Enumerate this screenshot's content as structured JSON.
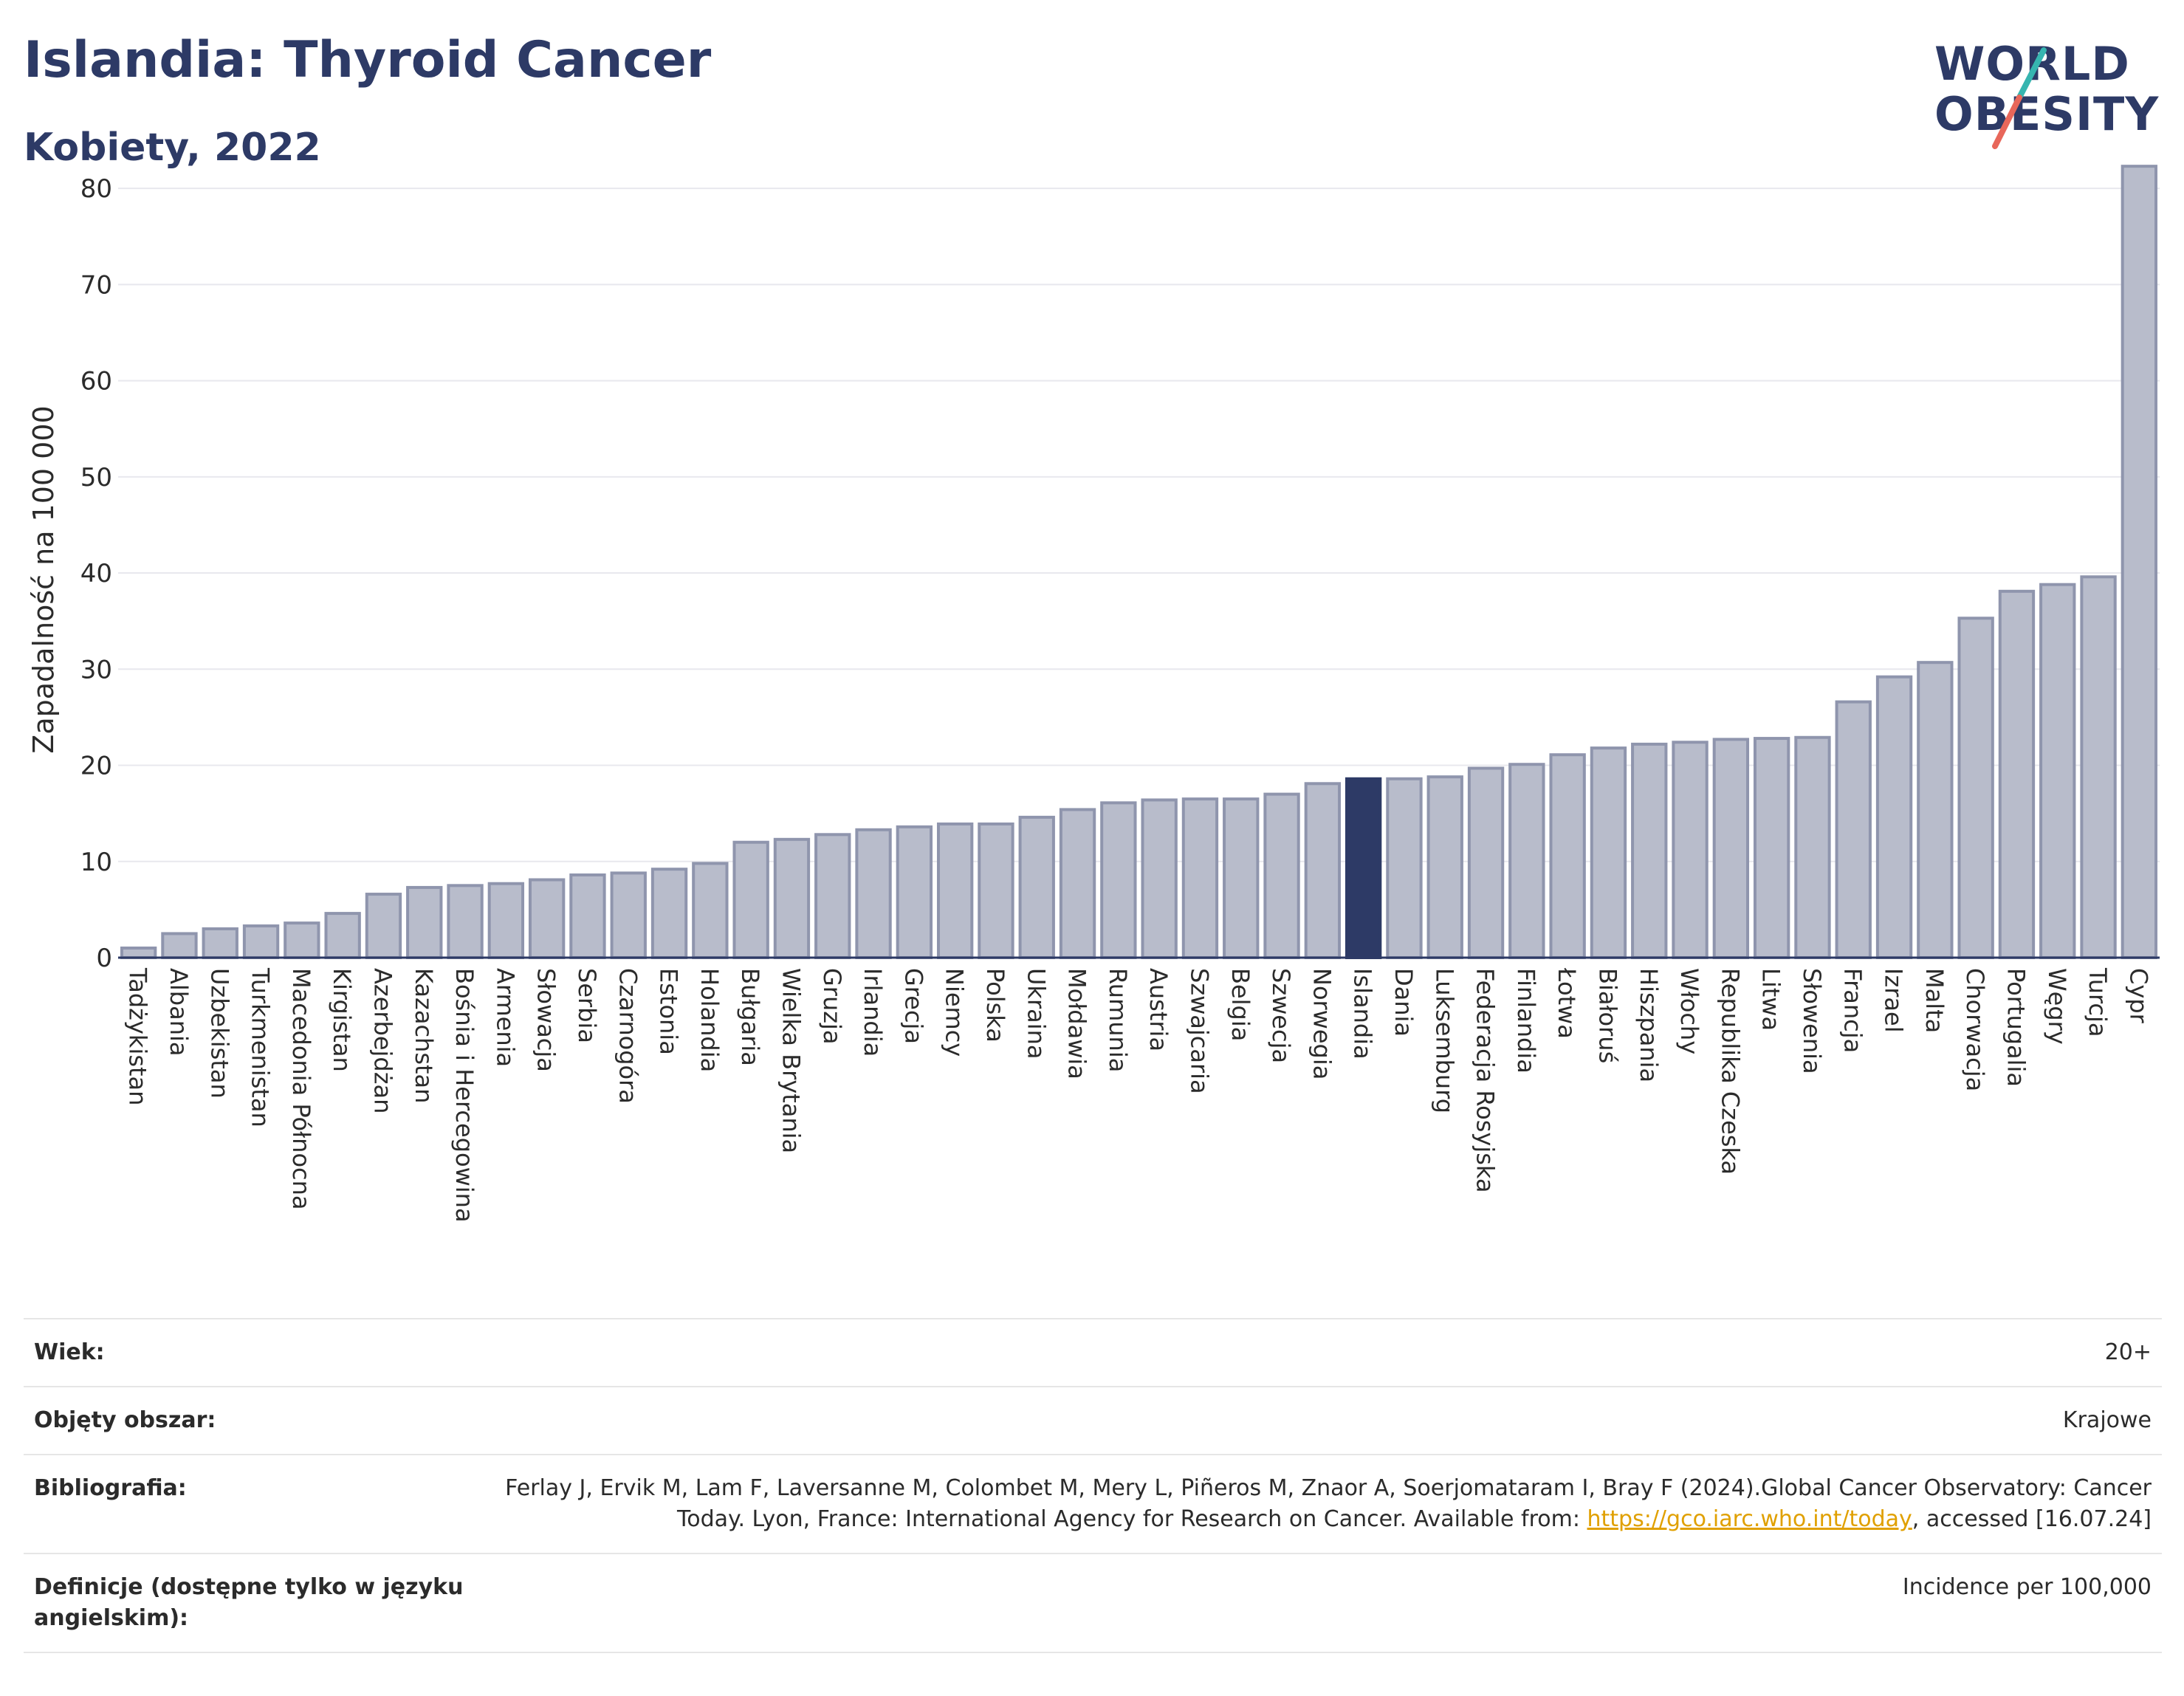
{
  "header": {
    "title": "Islandia: Thyroid Cancer",
    "subtitle": "Kobiety, 2022"
  },
  "logo": {
    "line1": "WORLD",
    "line2": "OBESITY",
    "accent_colors": [
      "#36b5b0",
      "#e8675a"
    ]
  },
  "chart_data": {
    "type": "bar",
    "ylabel": "Zapadalność na 100 000",
    "xlabel": "",
    "ylim": [
      0,
      85
    ],
    "yticks": [
      0,
      10,
      20,
      30,
      40,
      50,
      60,
      70,
      80
    ],
    "grid": true,
    "highlight": "Islandia",
    "colors": {
      "bar": "#b8bccb",
      "bar_edge": "#8f95ad",
      "highlight": "#2d3a66"
    },
    "categories": [
      "Tadżykistan",
      "Albania",
      "Uzbekistan",
      "Turkmenistan",
      "Macedonia Północna",
      "Kirgistan",
      "Azerbejdżan",
      "Kazachstan",
      "Bośnia i Hercegowina",
      "Armenia",
      "Słowacja",
      "Serbia",
      "Czarnogóra",
      "Estonia",
      "Holandia",
      "Bułgaria",
      "Wielka Brytania",
      "Gruzja",
      "Irlandia",
      "Grecja",
      "Niemcy",
      "Polska",
      "Ukraina",
      "Mołdawia",
      "Rumunia",
      "Austria",
      "Szwajcaria",
      "Belgia",
      "Szwecja",
      "Norwegia",
      "Islandia",
      "Dania",
      "Luksemburg",
      "Federacja Rosyjska",
      "Finlandia",
      "Łotwa",
      "Białoruś",
      "Hiszpania",
      "Włochy",
      "Republika Czeska",
      "Litwa",
      "Słowenia",
      "Francja",
      "Izrael",
      "Malta",
      "Chorwacja",
      "Portugalia",
      "Węgry",
      "Turcja",
      "Cypr"
    ],
    "values": [
      1.0,
      2.5,
      3.0,
      3.3,
      3.6,
      4.6,
      6.6,
      7.3,
      7.5,
      7.7,
      8.1,
      8.6,
      8.8,
      9.2,
      9.8,
      12.0,
      12.3,
      12.8,
      13.3,
      13.6,
      13.9,
      13.9,
      14.6,
      15.4,
      16.1,
      16.4,
      16.5,
      16.5,
      17.0,
      18.1,
      18.6,
      18.6,
      18.8,
      19.7,
      20.1,
      21.1,
      21.8,
      22.2,
      22.4,
      22.7,
      22.8,
      22.9,
      26.6,
      29.2,
      30.7,
      35.3,
      38.1,
      38.8,
      39.6,
      82.3
    ]
  },
  "meta": {
    "rows": [
      {
        "key": "Wiek:",
        "value": "20+"
      },
      {
        "key": "Objęty obszar:",
        "value": "Krajowe"
      },
      {
        "key": "Bibliografia:",
        "value_pre": "Ferlay J, Ervik M, Lam F, Laversanne M, Colombet M, Mery L, Piñeros M, Znaor A, Soerjomataram I, Bray F (2024).Global Cancer Observatory: Cancer Today. Lyon, France: International Agency for Research on Cancer. Available from: ",
        "link": "https://gco.iarc.who.int/today",
        "value_post": ", accessed [16.07.24]"
      },
      {
        "key": "Definicje (dostępne tylko w języku angielskim):",
        "value": "Incidence per 100,000"
      }
    ]
  }
}
